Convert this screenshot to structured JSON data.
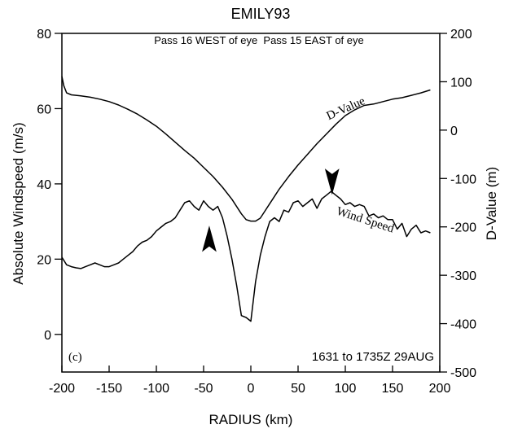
{
  "chart_data": {
    "type": "line",
    "title": "EMILY93",
    "subtitle": "Pass 16 WEST of eye  Pass 15 EAST of eye",
    "xlabel": "RADIUS (km)",
    "ylabel_left": "Absolute Windspeed (m/s)",
    "ylabel_right": "D-Value (m)",
    "xlim": [
      -200,
      200
    ],
    "ylim_left": [
      -10,
      80
    ],
    "ylim_right": [
      -500,
      200
    ],
    "x_ticks": [
      -200,
      -150,
      -100,
      -50,
      0,
      50,
      100,
      150,
      200
    ],
    "x_tick_labels": [
      "-200",
      "-150",
      "-100",
      "-50",
      "0",
      "50",
      "100",
      "150",
      "200"
    ],
    "y_left_ticks": [
      0,
      20,
      40,
      60,
      80
    ],
    "y_left_tick_labels": [
      "0",
      "20",
      "40",
      "60",
      "80"
    ],
    "y_right_ticks": [
      -500,
      -400,
      -300,
      -200,
      -100,
      0,
      100,
      200
    ],
    "y_right_tick_labels": [
      "-500",
      "-400",
      "-300",
      "-200",
      "-100",
      "0",
      "100",
      "200"
    ],
    "grid": false,
    "panel_label": "(c)",
    "time_label": "1631 to 1735Z 29AUG",
    "series": [
      {
        "name": "D-Value",
        "axis": "right",
        "x": [
          -200,
          -198,
          -195,
          -190,
          -180,
          -170,
          -160,
          -150,
          -140,
          -130,
          -120,
          -110,
          -100,
          -90,
          -80,
          -70,
          -60,
          -50,
          -40,
          -30,
          -20,
          -10,
          -5,
          0,
          5,
          10,
          15,
          20,
          25,
          30,
          40,
          50,
          60,
          70,
          80,
          90,
          100,
          110,
          120,
          130,
          140,
          150,
          160,
          170,
          180,
          190
        ],
        "values": [
          111,
          92,
          77,
          73,
          71,
          68,
          64,
          59,
          52,
          43,
          33,
          21,
          8,
          -8,
          -25,
          -42,
          -58,
          -77,
          -96,
          -118,
          -143,
          -173,
          -185,
          -188,
          -188,
          -182,
          -167,
          -152,
          -137,
          -122,
          -96,
          -72,
          -50,
          -28,
          -8,
          12,
          30,
          42,
          51,
          54,
          59,
          64,
          67,
          72,
          77,
          83
        ]
      },
      {
        "name": "Wind Speed",
        "axis": "left",
        "x": [
          -200,
          -195,
          -190,
          -185,
          -180,
          -175,
          -170,
          -165,
          -160,
          -155,
          -150,
          -145,
          -140,
          -135,
          -130,
          -125,
          -120,
          -115,
          -110,
          -105,
          -100,
          -95,
          -90,
          -85,
          -80,
          -75,
          -70,
          -65,
          -60,
          -55,
          -50,
          -45,
          -40,
          -35,
          -30,
          -25,
          -20,
          -15,
          -10,
          -5,
          0,
          5,
          10,
          15,
          20,
          25,
          30,
          35,
          40,
          45,
          50,
          55,
          60,
          65,
          70,
          75,
          80,
          85,
          90,
          95,
          100,
          105,
          110,
          115,
          120,
          125,
          130,
          135,
          140,
          145,
          150,
          155,
          160,
          165,
          170,
          175,
          180,
          185,
          190
        ],
        "values": [
          20.5,
          18.5,
          18,
          17.7,
          17.5,
          18,
          18.5,
          19,
          18.5,
          18,
          18,
          18.5,
          19,
          20,
          21,
          22,
          23.5,
          24.5,
          25,
          26,
          27.5,
          28.5,
          29.5,
          30,
          31,
          33,
          35,
          35.5,
          34,
          33,
          35.5,
          34,
          33,
          34,
          31,
          26,
          20,
          13,
          5,
          4.5,
          3.5,
          14,
          21,
          26,
          30,
          31,
          30,
          33,
          32.5,
          35,
          35.5,
          34,
          35,
          36,
          33.5,
          36,
          37,
          38,
          37,
          36,
          34.5,
          35,
          34,
          34.5,
          34,
          31.5,
          32,
          31,
          31.5,
          30.5,
          30.5,
          28,
          29.5,
          26,
          28,
          29,
          27,
          27.5,
          27
        ]
      }
    ],
    "annotations": [
      {
        "text": "D-Value",
        "x": 102,
        "axis": "right",
        "y": 38,
        "rotation": -24
      },
      {
        "text": "Wind Speed",
        "x": 120,
        "axis": "left",
        "y": 29.5,
        "rotation": 18
      }
    ],
    "arrows": [
      {
        "name": "up-arrow",
        "x": -44,
        "axis": "left",
        "tip_y": 28.5,
        "direction": "up"
      },
      {
        "name": "down-arrow",
        "x": 86,
        "axis": "left",
        "tip_y": 37.5,
        "direction": "down"
      }
    ]
  }
}
